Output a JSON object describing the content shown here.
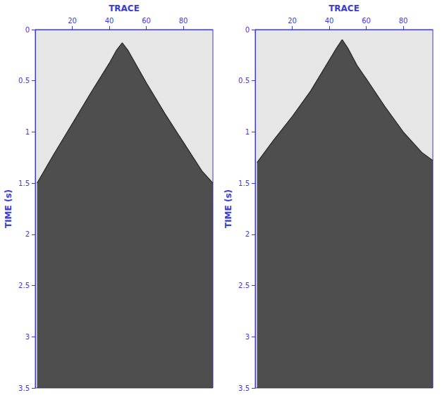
{
  "chart_data": [
    {
      "type": "area",
      "x_label": "TRACE",
      "y_label": "TIME (s)",
      "x": [
        1,
        10,
        20,
        30,
        40,
        44,
        47,
        50,
        55,
        60,
        70,
        80,
        90,
        96
      ],
      "values": [
        1.5,
        1.22,
        0.92,
        0.62,
        0.33,
        0.2,
        0.13,
        0.2,
        0.36,
        0.52,
        0.82,
        1.1,
        1.38,
        1.5
      ],
      "xlim": [
        0,
        96
      ],
      "xticks": [
        20,
        40,
        60,
        80
      ],
      "ylim": [
        0,
        3.5
      ],
      "yticks": [
        0,
        0.5,
        1,
        1.5,
        2,
        2.5,
        3,
        3.5
      ],
      "color": "#333333"
    },
    {
      "type": "area",
      "x_label": "TRACE",
      "y_label": "TIME (s)",
      "x": [
        1,
        10,
        20,
        30,
        40,
        44,
        47,
        50,
        55,
        60,
        70,
        80,
        90,
        96
      ],
      "values": [
        1.3,
        1.08,
        0.85,
        0.6,
        0.3,
        0.18,
        0.1,
        0.18,
        0.35,
        0.48,
        0.75,
        1.0,
        1.2,
        1.28
      ],
      "xlim": [
        0,
        96
      ],
      "xticks": [
        20,
        40,
        60,
        80
      ],
      "ylim": [
        0,
        3.5
      ],
      "yticks": [
        0,
        0.5,
        1,
        1.5,
        2,
        2.5,
        3,
        3.5
      ],
      "color": "#333333"
    }
  ]
}
